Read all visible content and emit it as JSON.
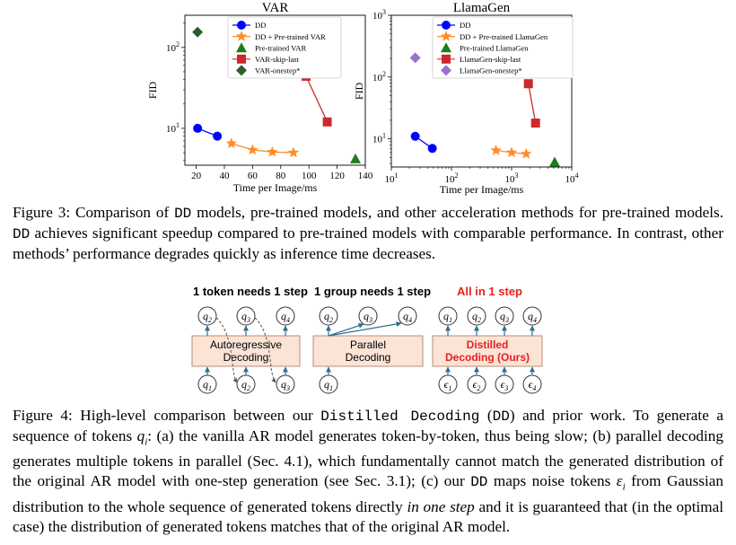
{
  "chart_data": [
    {
      "type": "scatter",
      "title": "VAR",
      "xlabel": "Time per Image/ms",
      "ylabel": "FID",
      "xscale": "linear",
      "yscale": "log",
      "xlim": [
        12,
        140
      ],
      "ylim": [
        3.5,
        250
      ],
      "xticks": [
        20,
        40,
        60,
        80,
        100,
        120,
        140
      ],
      "yticks": [
        {
          "value": 10,
          "label": "10^1"
        },
        {
          "value": 100,
          "label": "10^2"
        }
      ],
      "legend": "top-right",
      "series": [
        {
          "name": "DD",
          "marker": "circle",
          "color": "#0000ff",
          "line": true,
          "points": [
            [
              21,
              10.0
            ],
            [
              35,
              8.0
            ]
          ]
        },
        {
          "name": "DD + Pre-trained VAR",
          "marker": "star",
          "color": "#ff8c28",
          "line": true,
          "points": [
            [
              45,
              6.5
            ],
            [
              60,
              5.4
            ],
            [
              74,
              5.1
            ],
            [
              89,
              5.0
            ]
          ]
        },
        {
          "name": "Pre-trained VAR",
          "marker": "triangle",
          "color": "#1d7d1d",
          "line": false,
          "points": [
            [
              133,
              4.2
            ]
          ]
        },
        {
          "name": "VAR-skip-last",
          "marker": "square",
          "color": "#cc2a2a",
          "line": true,
          "points": [
            [
              98,
              44
            ],
            [
              113,
              12
            ]
          ]
        },
        {
          "name": "VAR-onestep*",
          "marker": "diamond",
          "color": "#2d5e2d",
          "line": false,
          "points": [
            [
              21,
              155
            ]
          ]
        }
      ]
    },
    {
      "type": "scatter",
      "title": "LlamaGen",
      "xlabel": "Time per Image/ms",
      "ylabel": "FID",
      "xscale": "log",
      "yscale": "log",
      "xlim": [
        10,
        10000
      ],
      "ylim": [
        3.5,
        1000
      ],
      "xticks": [
        {
          "value": 10,
          "label": "10^1"
        },
        {
          "value": 100,
          "label": "10^2"
        },
        {
          "value": 1000,
          "label": "10^3"
        },
        {
          "value": 10000,
          "label": "10^4"
        }
      ],
      "yticks": [
        {
          "value": 10,
          "label": "10^1"
        },
        {
          "value": 100,
          "label": "10^2"
        },
        {
          "value": 1000,
          "label": "10^3"
        }
      ],
      "legend": "top-right",
      "series": [
        {
          "name": "DD",
          "marker": "circle",
          "color": "#0000ff",
          "line": true,
          "points": [
            [
              25,
              11.0
            ],
            [
              48,
              7.0
            ]
          ]
        },
        {
          "name": "DD + Pre-trained LlamaGen",
          "marker": "star",
          "color": "#ff8c28",
          "line": true,
          "points": [
            [
              550,
              6.5
            ],
            [
              1000,
              6.0
            ],
            [
              1750,
              5.7
            ]
          ]
        },
        {
          "name": "Pre-trained LlamaGen",
          "marker": "triangle",
          "color": "#1d7d1d",
          "line": false,
          "points": [
            [
              5200,
              4.2
            ]
          ]
        },
        {
          "name": "LlamaGen-skip-last",
          "marker": "square",
          "color": "#cc2a2a",
          "line": true,
          "points": [
            [
              1900,
              78
            ],
            [
              2500,
              18
            ]
          ]
        },
        {
          "name": "LlamaGen-onestep*",
          "marker": "diamond",
          "color": "#9b6fd0",
          "line": false,
          "points": [
            [
              25,
              205
            ]
          ]
        }
      ]
    }
  ],
  "figure3": {
    "caption_parts": [
      "Figure 3: Comparison of ",
      "DD",
      " models, pre-trained models, and other acceleration methods for pre-trained models. ",
      "DD",
      " achieves significant speedup compared to pre-trained models with comparable performance. In contrast, other methods’ performance degrades quickly as inference time decreases."
    ]
  },
  "figure4": {
    "panel_a": {
      "title": "1 token needs 1 step",
      "box": [
        "Autoregressive",
        "Decoding"
      ],
      "top_tokens": [
        "q2",
        "q3",
        "q4"
      ],
      "bottom_tokens": [
        "q1",
        "q2",
        "q3"
      ]
    },
    "panel_b": {
      "title": "1 group needs 1 step",
      "box": [
        "Parallel",
        "Decoding"
      ],
      "top_tokens": [
        "q2",
        "q3",
        "q4"
      ],
      "bottom_tokens": [
        "q1"
      ]
    },
    "panel_c": {
      "title": "All in 1 step",
      "box": [
        "Distilled",
        "Decoding (Ours)"
      ],
      "top_tokens": [
        "q1",
        "q2",
        "q3",
        "q4"
      ],
      "bottom_tokens": [
        "ε1",
        "ε2",
        "ε3",
        "ε4"
      ]
    },
    "caption_parts": {
      "p1": "Figure 4: High-level comparison between our ",
      "p2": "Distilled Decoding",
      "p3": " (",
      "p4": "DD",
      "p5": ") and prior work. To generate a sequence of tokens ",
      "p6": "q",
      "p7": "i",
      "p8": ": (a) the vanilla AR model generates token-by-token, thus being slow; (b) parallel decoding generates multiple tokens in parallel (Sec. 4.1), which fundamentally cannot match the generated distribution of the original AR model with one-step generation (see Sec. 3.1); (c) our ",
      "p9": "DD",
      "p10": " maps noise tokens ",
      "p11": "ε",
      "p12": "i",
      "p13": " from Gaussian distribution to the whole sequence of generated tokens directly ",
      "p14": "in one step",
      "p15": " and it is guaranteed that (in the optimal case) the distribution of generated tokens matches that of the original AR model."
    }
  },
  "colors": {
    "box_fill": "#fbe3d6",
    "box_stroke": "#c99a80",
    "red_text": "#e8201e",
    "arrow_blue": "#2f6f8f"
  }
}
